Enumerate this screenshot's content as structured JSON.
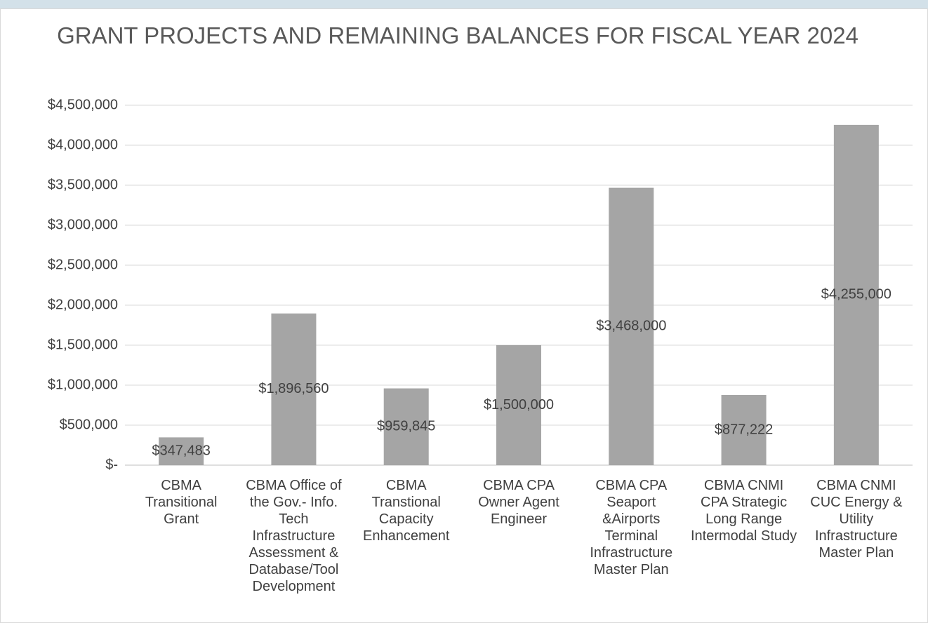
{
  "chart_data": {
    "type": "bar",
    "title": "GRANT PROJECTS AND REMAINING BALANCES FOR FISCAL YEAR 2024",
    "categories": [
      "CBMA Transitional Grant",
      "CBMA Office of the Gov.- Info. Tech Infrastructure Assessment & Database/Tool Development",
      "CBMA Transtional Capacity Enhancement",
      "CBMA CPA Owner Agent Engineer",
      "CBMA CPA Seaport &Airports Terminal Infrastructure Master Plan",
      "CBMA CNMI CPA Strategic Long Range Intermodal Study",
      "CBMA CNMI CUC Energy & Utility Infrastructure Master Plan"
    ],
    "values": [
      347483,
      1896560,
      959845,
      1500000,
      3468000,
      877222,
      4255000
    ],
    "value_labels": [
      "$347,483",
      "$1,896,560",
      "$959,845",
      "$1,500,000",
      "$3,468,000",
      "$877,222",
      "$4,255,000"
    ],
    "color": "#a5a5a5",
    "ylim": [
      0,
      4500000
    ],
    "yticks": [
      {
        "value": 0,
        "label": "$-"
      },
      {
        "value": 500000,
        "label": "$500,000"
      },
      {
        "value": 1000000,
        "label": "$1,000,000"
      },
      {
        "value": 1500000,
        "label": "$1,500,000"
      },
      {
        "value": 2000000,
        "label": "$2,000,000"
      },
      {
        "value": 2500000,
        "label": "$2,500,000"
      },
      {
        "value": 3000000,
        "label": "$3,000,000"
      },
      {
        "value": 3500000,
        "label": "$3,500,000"
      },
      {
        "value": 4000000,
        "label": "$4,000,000"
      },
      {
        "value": 4500000,
        "label": "$4,500,000"
      }
    ],
    "grid": true
  }
}
